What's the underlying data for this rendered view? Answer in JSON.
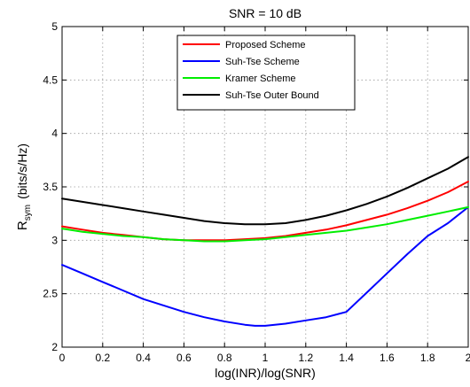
{
  "chart_data": {
    "type": "line",
    "title": "SNR = 10 dB",
    "xlabel": "log(INR)/log(SNR)",
    "ylabel": "R",
    "ylabel_subscript": "sym",
    "ylabel_units": "(bits/s/Hz)",
    "xlim": [
      0,
      2
    ],
    "ylim": [
      2,
      5
    ],
    "xticks": [
      0,
      0.2,
      0.4,
      0.6,
      0.8,
      1,
      1.2,
      1.4,
      1.6,
      1.8,
      2
    ],
    "xtick_labels": [
      "0",
      "0.2",
      "0.4",
      "0.6",
      "0.8",
      "1",
      "1.2",
      "1.4",
      "1.6",
      "1.8",
      "2"
    ],
    "yticks": [
      2,
      2.5,
      3,
      3.5,
      4,
      4.5,
      5
    ],
    "ytick_labels": [
      "2",
      "2.5",
      "3",
      "3.5",
      "4",
      "4.5",
      "5"
    ],
    "grid": true,
    "legend_position": "top-center",
    "series": [
      {
        "name": "Proposed Scheme",
        "color": "#ff0000",
        "x": [
          0,
          0.1,
          0.2,
          0.3,
          0.4,
          0.5,
          0.6,
          0.7,
          0.8,
          0.9,
          1.0,
          1.1,
          1.2,
          1.3,
          1.4,
          1.5,
          1.6,
          1.7,
          1.8,
          1.9,
          2.0
        ],
        "y": [
          3.13,
          3.1,
          3.07,
          3.05,
          3.03,
          3.01,
          3.0,
          3.0,
          3.0,
          3.01,
          3.02,
          3.04,
          3.07,
          3.1,
          3.14,
          3.19,
          3.24,
          3.3,
          3.37,
          3.45,
          3.55
        ]
      },
      {
        "name": "Suh-Tse Scheme",
        "color": "#0000ff",
        "x": [
          0,
          0.1,
          0.2,
          0.3,
          0.4,
          0.5,
          0.6,
          0.7,
          0.8,
          0.9,
          0.95,
          1.0,
          1.1,
          1.2,
          1.3,
          1.4,
          1.5,
          1.6,
          1.7,
          1.8,
          1.9,
          2.0
        ],
        "y": [
          2.77,
          2.69,
          2.61,
          2.53,
          2.45,
          2.39,
          2.33,
          2.28,
          2.24,
          2.21,
          2.2,
          2.2,
          2.22,
          2.25,
          2.28,
          2.33,
          2.51,
          2.69,
          2.87,
          3.04,
          3.16,
          3.31
        ]
      },
      {
        "name": "Kramer Scheme",
        "color": "#00ee00",
        "x": [
          0,
          0.1,
          0.2,
          0.3,
          0.4,
          0.5,
          0.6,
          0.7,
          0.8,
          0.9,
          1.0,
          1.1,
          1.2,
          1.3,
          1.4,
          1.5,
          1.6,
          1.7,
          1.8,
          1.9,
          2.0
        ],
        "y": [
          3.11,
          3.08,
          3.06,
          3.04,
          3.03,
          3.01,
          3.0,
          2.99,
          2.99,
          3.0,
          3.01,
          3.03,
          3.05,
          3.07,
          3.09,
          3.12,
          3.15,
          3.19,
          3.23,
          3.27,
          3.31
        ]
      },
      {
        "name": "Suh-Tse Outer Bound",
        "color": "#000000",
        "x": [
          0,
          0.1,
          0.2,
          0.3,
          0.4,
          0.5,
          0.6,
          0.7,
          0.8,
          0.9,
          1.0,
          1.1,
          1.2,
          1.3,
          1.4,
          1.5,
          1.6,
          1.7,
          1.8,
          1.9,
          2.0
        ],
        "y": [
          3.39,
          3.36,
          3.33,
          3.3,
          3.27,
          3.24,
          3.21,
          3.18,
          3.16,
          3.15,
          3.15,
          3.16,
          3.19,
          3.23,
          3.28,
          3.34,
          3.41,
          3.49,
          3.58,
          3.67,
          3.78
        ]
      }
    ]
  }
}
